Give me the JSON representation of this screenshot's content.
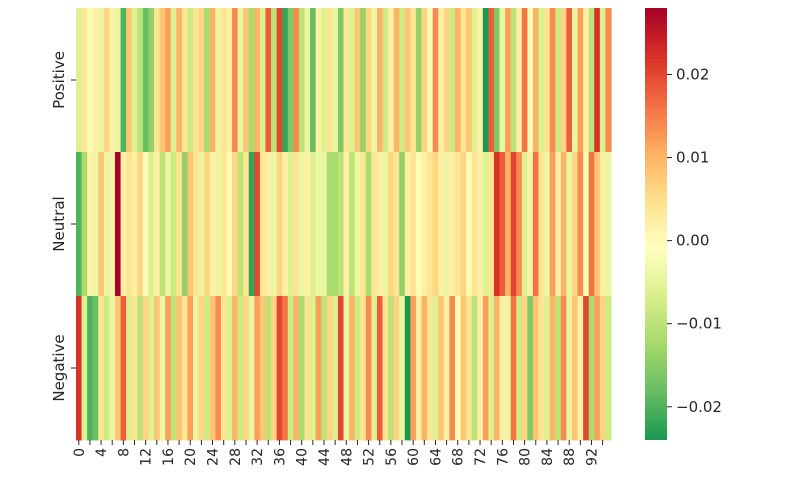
{
  "chart_data": {
    "type": "heatmap",
    "rows": [
      "Positive",
      "Neutral",
      "Negative"
    ],
    "columns": [
      0,
      1,
      2,
      3,
      4,
      5,
      6,
      7,
      8,
      9,
      10,
      11,
      12,
      13,
      14,
      15,
      16,
      17,
      18,
      19,
      20,
      21,
      22,
      23,
      24,
      25,
      26,
      27,
      28,
      29,
      30,
      31,
      32,
      33,
      34,
      35,
      36,
      37,
      38,
      39,
      40,
      41,
      42,
      43,
      44,
      45,
      46,
      47,
      48,
      49,
      50,
      51,
      52,
      53,
      54,
      55,
      56,
      57,
      58,
      59,
      60,
      61,
      62,
      63,
      64,
      65,
      66,
      67,
      68,
      69,
      70,
      71,
      72,
      73,
      74,
      75,
      76,
      77,
      78,
      79,
      80,
      81,
      82,
      83,
      84,
      85,
      86,
      87,
      88,
      89,
      90,
      91,
      92,
      93,
      94,
      95
    ],
    "x_tick_labels": [
      "0",
      "4",
      "8",
      "12",
      "16",
      "20",
      "24",
      "28",
      "32",
      "36",
      "40",
      "44",
      "48",
      "52",
      "56",
      "60",
      "64",
      "68",
      "72",
      "76",
      "80",
      "84",
      "88",
      "92"
    ],
    "values": [
      [
        -0.006,
        0.004,
        -0.002,
        0.002,
        -0.004,
        0.006,
        0.002,
        -0.004,
        -0.02,
        0.008,
        -0.006,
        -0.01,
        -0.018,
        -0.014,
        0.004,
        0.008,
        0.012,
        -0.006,
        0.01,
        0.004,
        -0.008,
        0.004,
        0.006,
        -0.012,
        0.01,
        -0.004,
        0.004,
        0.002,
        0.014,
        -0.004,
        0.008,
        -0.012,
        0.01,
        -0.006,
        0.018,
        -0.01,
        0.02,
        -0.022,
        -0.016,
        0.014,
        -0.01,
        -0.004,
        -0.018,
        0.002,
        -0.006,
        0.004,
        -0.004,
        -0.016,
        0.004,
        -0.006,
        0.008,
        -0.014,
        0.006,
        -0.004,
        0.01,
        -0.008,
        0.002,
        0.01,
        -0.008,
        0.008,
        0.004,
        -0.014,
        0.006,
        -0.002,
        0.014,
        0.002,
        0.006,
        -0.008,
        0.01,
        0.004,
        0.008,
        -0.006,
        0.002,
        -0.024,
        0.018,
        -0.016,
        -0.004,
        0.012,
        -0.01,
        0.002,
        0.016,
        -0.002,
        0.01,
        -0.006,
        0.004,
        0.014,
        -0.008,
        0.006,
        0.018,
        -0.004,
        0.012,
        0.002,
        -0.01,
        0.022,
        -0.006,
        0.014
      ],
      [
        -0.02,
        -0.012,
        0.002,
        -0.004,
        0.008,
        -0.004,
        0.002,
        0.028,
        0.002,
        0.004,
        0.002,
        0.006,
        -0.002,
        -0.006,
        0.002,
        -0.01,
        -0.004,
        -0.008,
        0.004,
        -0.014,
        0.008,
        0.004,
        -0.004,
        0.006,
        0.002,
        -0.004,
        0.004,
        -0.002,
        0.006,
        -0.01,
        0.004,
        -0.022,
        0.02,
        0.004,
        0.002,
        -0.004,
        0.006,
        0.002,
        -0.006,
        0.004,
        -0.004,
        0.002,
        -0.006,
        -0.004,
        -0.004,
        -0.012,
        -0.012,
        -0.01,
        0.002,
        -0.01,
        -0.004,
        0.004,
        -0.012,
        0.004,
        0.002,
        -0.004,
        0.006,
        0.004,
        -0.014,
        0.002,
        0.004,
        -0.002,
        0.002,
        0.004,
        0.006,
        0.002,
        -0.004,
        0.002,
        0.004,
        0.006,
        -0.002,
        0.004,
        0.002,
        -0.006,
        0.004,
        0.022,
        0.018,
        0.01,
        0.02,
        0.014,
        -0.006,
        0.002,
        0.016,
        0.004,
        -0.004,
        0.012,
        0.002,
        0.01,
        -0.004,
        0.006,
        0.014,
        -0.002,
        0.016,
        0.008,
        0.002,
        -0.004
      ],
      [
        0.022,
        -0.006,
        -0.02,
        -0.018,
        0.004,
        -0.008,
        -0.004,
        0.008,
        0.018,
        -0.006,
        0.004,
        -0.01,
        0.006,
        -0.006,
        0.008,
        -0.004,
        0.012,
        -0.01,
        0.008,
        0.004,
        0.012,
        -0.004,
        0.006,
        -0.008,
        0.008,
        0.014,
        0.004,
        -0.006,
        0.01,
        -0.008,
        0.006,
        -0.004,
        0.012,
        0.008,
        -0.01,
        0.006,
        0.02,
        0.016,
        -0.008,
        0.01,
        -0.012,
        0.004,
        -0.006,
        0.012,
        -0.01,
        0.006,
        -0.006,
        0.02,
        -0.004,
        0.01,
        -0.008,
        0.004,
        0.014,
        -0.006,
        0.018,
        0.004,
        -0.01,
        0.006,
        -0.004,
        -0.024,
        0.012,
        0.002,
        0.01,
        0.004,
        -0.006,
        0.008,
        0.002,
        0.014,
        -0.002,
        0.008,
        0.004,
        -0.01,
        0.002,
        0.012,
        -0.006,
        0.01,
        0.002,
        -0.004,
        0.016,
        -0.008,
        0.006,
        -0.016,
        0.008,
        0.004,
        -0.006,
        0.01,
        -0.01,
        0.014,
        -0.004,
        0.008,
        0.002,
        0.02,
        -0.012,
        0.012,
        0.006,
        -0.008
      ]
    ],
    "colorbar": {
      "vmin": -0.024,
      "vmax": 0.028,
      "ticks": [
        -0.02,
        -0.01,
        0.0,
        0.01,
        0.02
      ],
      "tick_labels": [
        "−0.02",
        "−0.01",
        "0.00",
        "0.01",
        "0.02"
      ],
      "colormap": "RdYlGn_r",
      "colors": [
        "#1a9850",
        "#66bd63",
        "#a6d96a",
        "#d9ef8b",
        "#ffffbf",
        "#fee08b",
        "#fdae61",
        "#f46d43",
        "#d73027",
        "#a50026"
      ]
    }
  }
}
